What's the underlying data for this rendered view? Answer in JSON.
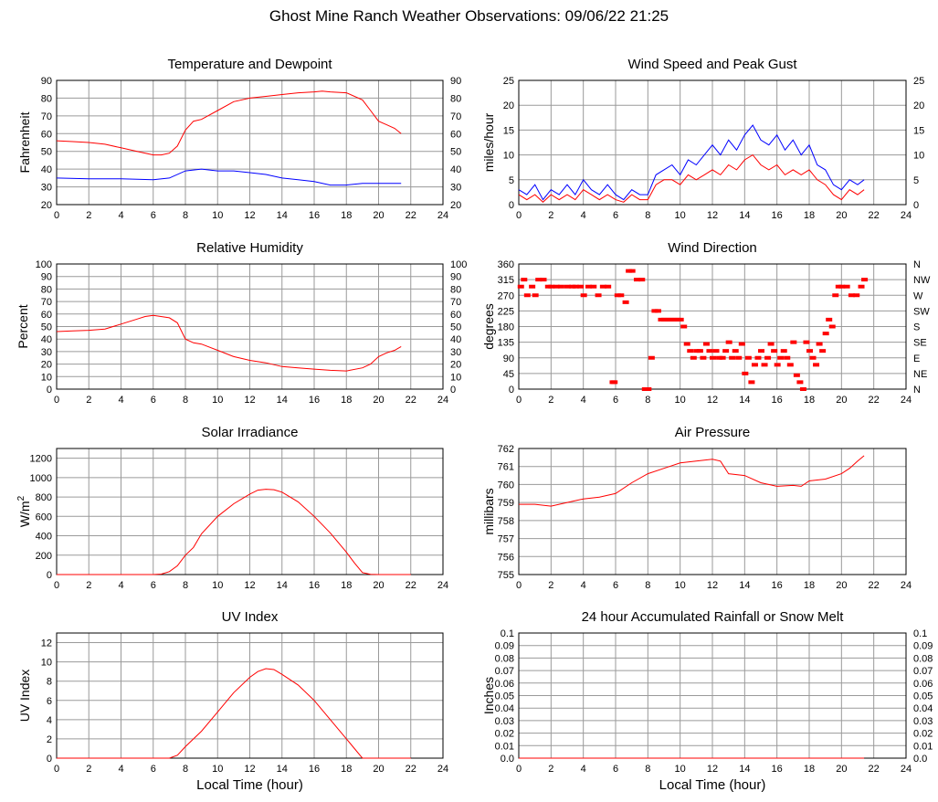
{
  "page_title": "Ghost Mine Ranch Weather Observations: 09/06/22 21:25",
  "x_axis_label": "Local Time (hour)",
  "colors": {
    "primary_series": "#ff0000",
    "secondary_series": "#0000ff",
    "grid": "#9a9a9a"
  },
  "chart_data": [
    {
      "id": "temperature",
      "type": "line",
      "title": "Temperature and Dewpoint",
      "ylabel": "Fahrenheit",
      "xlim": [
        0,
        24
      ],
      "ylim": [
        20,
        90
      ],
      "xticks": [
        0,
        2,
        4,
        6,
        8,
        10,
        12,
        14,
        16,
        18,
        20,
        22,
        24
      ],
      "yticks": [
        20,
        30,
        40,
        50,
        60,
        70,
        80,
        90
      ],
      "ytick_labels": [
        "20",
        "30",
        "40",
        "50",
        "60",
        "70",
        "80",
        "90"
      ],
      "right_ticks": [
        "20",
        "30",
        "40",
        "50",
        "60",
        "70",
        "80",
        "90"
      ],
      "series": [
        {
          "name": "Temperature",
          "color": "#ff0000",
          "x": [
            0,
            1,
            2,
            3,
            4,
            5,
            6,
            6.5,
            7,
            7.5,
            8,
            8.5,
            9,
            10,
            11,
            12,
            13,
            14,
            15,
            16,
            16.5,
            17,
            18,
            19,
            19.5,
            20,
            20.5,
            21,
            21.4
          ],
          "y": [
            56,
            55.5,
            55,
            54,
            52,
            50,
            48,
            48,
            49,
            53,
            62,
            67,
            68,
            73,
            78,
            80,
            81,
            82,
            83,
            83.5,
            84,
            83.5,
            83,
            79,
            73,
            67,
            65,
            63,
            60
          ]
        },
        {
          "name": "Dewpoint",
          "color": "#0000ff",
          "x": [
            0,
            2,
            4,
            6,
            7,
            8,
            9,
            10,
            11,
            12,
            13,
            14,
            15,
            16,
            17,
            18,
            19,
            20,
            21,
            21.4
          ],
          "y": [
            35,
            34.5,
            34.5,
            34,
            35,
            39,
            40,
            39,
            39,
            38,
            37,
            35,
            34,
            33,
            31,
            31,
            32,
            32,
            32,
            32
          ]
        }
      ]
    },
    {
      "id": "wind_speed",
      "type": "line",
      "title": "Wind Speed and Peak Gust",
      "ylabel": "miles/hour",
      "xlim": [
        0,
        24
      ],
      "ylim": [
        0,
        25
      ],
      "xticks": [
        0,
        2,
        4,
        6,
        8,
        10,
        12,
        14,
        16,
        18,
        20,
        22,
        24
      ],
      "yticks": [
        0,
        5,
        10,
        15,
        20,
        25
      ],
      "ytick_labels": [
        "0",
        "5",
        "10",
        "15",
        "20",
        "25"
      ],
      "right_ticks": [
        "0",
        "5",
        "10",
        "15",
        "20",
        "25"
      ],
      "series": [
        {
          "name": "Peak Gust",
          "color": "#0000ff",
          "x": [
            0,
            0.5,
            1,
            1.5,
            2,
            2.5,
            3,
            3.5,
            4,
            4.5,
            5,
            5.5,
            6,
            6.5,
            7,
            7.5,
            8,
            8.5,
            9,
            9.5,
            10,
            10.5,
            11,
            11.5,
            12,
            12.5,
            13,
            13.5,
            14,
            14.5,
            15,
            15.5,
            16,
            16.5,
            17,
            17.5,
            18,
            18.5,
            19,
            19.5,
            20,
            20.5,
            21,
            21.4
          ],
          "y": [
            3,
            2,
            4,
            1,
            3,
            2,
            4,
            2,
            5,
            3,
            2,
            4,
            2,
            1,
            3,
            2,
            2,
            6,
            7,
            8,
            6,
            9,
            8,
            10,
            12,
            10,
            13,
            11,
            14,
            16,
            13,
            12,
            14,
            11,
            13,
            10,
            12,
            8,
            7,
            4,
            3,
            5,
            4,
            5
          ]
        },
        {
          "name": "Wind Speed",
          "color": "#ff0000",
          "x": [
            0,
            0.5,
            1,
            1.5,
            2,
            2.5,
            3,
            3.5,
            4,
            4.5,
            5,
            5.5,
            6,
            6.5,
            7,
            7.5,
            8,
            8.5,
            9,
            9.5,
            10,
            10.5,
            11,
            11.5,
            12,
            12.5,
            13,
            13.5,
            14,
            14.5,
            15,
            15.5,
            16,
            16.5,
            17,
            17.5,
            18,
            18.5,
            19,
            19.5,
            20,
            20.5,
            21,
            21.4
          ],
          "y": [
            2,
            1,
            2,
            0.5,
            2,
            1,
            2,
            1,
            3,
            2,
            1,
            2,
            1,
            0.5,
            2,
            1,
            1,
            4,
            5,
            5,
            4,
            6,
            5,
            6,
            7,
            6,
            8,
            7,
            9,
            10,
            8,
            7,
            8,
            6,
            7,
            6,
            7,
            5,
            4,
            2,
            1,
            3,
            2,
            3
          ]
        }
      ]
    },
    {
      "id": "humidity",
      "type": "line",
      "title": "Relative Humidity",
      "ylabel": "Percent",
      "xlim": [
        0,
        24
      ],
      "ylim": [
        0,
        100
      ],
      "xticks": [
        0,
        2,
        4,
        6,
        8,
        10,
        12,
        14,
        16,
        18,
        20,
        22,
        24
      ],
      "yticks": [
        0,
        10,
        20,
        30,
        40,
        50,
        60,
        70,
        80,
        90,
        100
      ],
      "ytick_labels": [
        "0",
        "10",
        "20",
        "30",
        "40",
        "50",
        "60",
        "70",
        "80",
        "90",
        "100"
      ],
      "right_ticks": [
        "0",
        "10",
        "20",
        "30",
        "40",
        "50",
        "60",
        "70",
        "80",
        "90",
        "100"
      ],
      "series": [
        {
          "name": "Relative Humidity",
          "color": "#ff0000",
          "x": [
            0,
            1,
            2,
            3,
            4,
            5,
            5.5,
            6,
            7,
            7.5,
            8,
            8.5,
            9,
            10,
            11,
            12,
            13,
            14,
            15,
            16,
            17,
            18,
            19,
            19.5,
            20,
            20.5,
            21,
            21.4
          ],
          "y": [
            46,
            46.5,
            47,
            48,
            52,
            56,
            58,
            59,
            57,
            53,
            40,
            37,
            36,
            31,
            26,
            23,
            21,
            18,
            17,
            16,
            15,
            14.5,
            17,
            20,
            26,
            29,
            31,
            34
          ]
        }
      ]
    },
    {
      "id": "wind_direction",
      "type": "scatter",
      "title": "Wind Direction",
      "ylabel": "degrees",
      "xlim": [
        0,
        24
      ],
      "ylim": [
        0,
        360
      ],
      "xticks": [
        0,
        2,
        4,
        6,
        8,
        10,
        12,
        14,
        16,
        18,
        20,
        22,
        24
      ],
      "yticks": [
        0,
        45,
        90,
        135,
        180,
        225,
        270,
        315,
        360
      ],
      "ytick_labels": [
        "0",
        "45",
        "90",
        "135",
        "180",
        "225",
        "270",
        "315",
        "360"
      ],
      "right_ticks": [
        "N",
        "NE",
        "E",
        "SE",
        "S",
        "SW",
        "W",
        "NW",
        "N"
      ],
      "series": [
        {
          "name": "Wind Direction",
          "color": "#ff0000",
          "x": [
            0.1,
            0.3,
            0.5,
            0.8,
            1.0,
            1.2,
            1.5,
            1.8,
            2.0,
            2.3,
            2.6,
            3.0,
            3.3,
            3.5,
            3.8,
            4.0,
            4.3,
            4.6,
            4.9,
            5.2,
            5.5,
            5.8,
            5.9,
            6.1,
            6.3,
            6.6,
            6.8,
            7.0,
            7.3,
            7.6,
            7.8,
            8.0,
            8.2,
            8.4,
            8.6,
            8.8,
            9.0,
            9.2,
            9.4,
            9.6,
            9.8,
            10.0,
            10.2,
            10.4,
            10.6,
            10.8,
            11.0,
            11.2,
            11.4,
            11.6,
            11.8,
            12.0,
            12.2,
            12.4,
            12.6,
            12.8,
            13.0,
            13.2,
            13.4,
            13.6,
            13.8,
            14.0,
            14.2,
            14.4,
            14.6,
            14.8,
            15.0,
            15.2,
            15.4,
            15.6,
            15.8,
            16.0,
            16.2,
            16.4,
            16.6,
            16.8,
            17.0,
            17.2,
            17.4,
            17.6,
            17.8,
            18.0,
            18.2,
            18.4,
            18.6,
            18.8,
            19.0,
            19.2,
            19.4,
            19.6,
            19.8,
            20.0,
            20.3,
            20.6,
            20.9,
            21.2,
            21.4
          ],
          "y": [
            295,
            315,
            270,
            295,
            270,
            315,
            315,
            295,
            295,
            295,
            295,
            295,
            295,
            295,
            295,
            270,
            295,
            295,
            270,
            295,
            295,
            20,
            20,
            270,
            270,
            250,
            340,
            340,
            315,
            315,
            0,
            0,
            90,
            225,
            225,
            200,
            200,
            200,
            200,
            200,
            200,
            200,
            180,
            130,
            110,
            90,
            110,
            110,
            90,
            130,
            110,
            90,
            110,
            90,
            90,
            110,
            135,
            90,
            110,
            90,
            130,
            45,
            90,
            20,
            70,
            90,
            110,
            70,
            90,
            130,
            110,
            70,
            90,
            110,
            90,
            70,
            135,
            40,
            20,
            0,
            135,
            110,
            90,
            70,
            130,
            110,
            160,
            200,
            180,
            270,
            295,
            295,
            295,
            270,
            270,
            295,
            315
          ]
        }
      ]
    },
    {
      "id": "solar",
      "type": "line",
      "title": "Solar Irradiance",
      "ylabel": "W/m²",
      "xlim": [
        0,
        24
      ],
      "ylim": [
        0,
        1300
      ],
      "xticks": [
        0,
        2,
        4,
        6,
        8,
        10,
        12,
        14,
        16,
        18,
        20,
        22,
        24
      ],
      "yticks": [
        0,
        200,
        400,
        600,
        800,
        1000,
        1200
      ],
      "ytick_labels": [
        "0",
        "200",
        "400",
        "600",
        "800",
        "1000",
        "1200"
      ],
      "right_ticks": [],
      "series": [
        {
          "name": "Solar Irradiance",
          "color": "#ff0000",
          "x": [
            0,
            2,
            4,
            6,
            6.5,
            7,
            7.5,
            8,
            8.5,
            9,
            10,
            11,
            12,
            12.5,
            13,
            13.5,
            14,
            15,
            16,
            17,
            18,
            18.5,
            19,
            19.5,
            20,
            22
          ],
          "y": [
            0,
            0,
            0,
            0,
            5,
            30,
            90,
            200,
            280,
            420,
            600,
            730,
            830,
            870,
            880,
            875,
            850,
            750,
            600,
            430,
            230,
            120,
            20,
            3,
            0,
            0
          ]
        }
      ]
    },
    {
      "id": "pressure",
      "type": "line",
      "title": "Air Pressure",
      "ylabel": "millibars",
      "xlim": [
        0,
        24
      ],
      "ylim": [
        755,
        762
      ],
      "xticks": [
        0,
        2,
        4,
        6,
        8,
        10,
        12,
        14,
        16,
        18,
        20,
        22,
        24
      ],
      "yticks": [
        755,
        756,
        757,
        758,
        759,
        760,
        761,
        762
      ],
      "ytick_labels": [
        "755",
        "756",
        "757",
        "758",
        "759",
        "760",
        "761",
        "762"
      ],
      "right_ticks": [],
      "series": [
        {
          "name": "Air Pressure",
          "color": "#ff0000",
          "x": [
            0,
            1,
            2,
            3,
            4,
            5,
            6,
            7,
            8,
            9,
            10,
            11,
            12,
            12.5,
            13,
            14,
            15,
            16,
            17,
            17.5,
            18,
            19,
            20,
            20.5,
            21,
            21.4
          ],
          "y": [
            758.9,
            758.9,
            758.8,
            759.0,
            759.2,
            759.3,
            759.5,
            760.1,
            760.6,
            760.9,
            761.2,
            761.3,
            761.4,
            761.3,
            760.6,
            760.5,
            760.1,
            759.9,
            759.95,
            759.9,
            760.2,
            760.3,
            760.6,
            760.9,
            761.3,
            761.6
          ]
        }
      ]
    },
    {
      "id": "uv",
      "type": "line",
      "title": "UV Index",
      "ylabel": "UV Index",
      "xlim": [
        0,
        24
      ],
      "ylim": [
        0,
        13
      ],
      "xticks": [
        0,
        2,
        4,
        6,
        8,
        10,
        12,
        14,
        16,
        18,
        20,
        22,
        24
      ],
      "yticks": [
        0,
        2,
        4,
        6,
        8,
        10,
        12
      ],
      "ytick_labels": [
        "0",
        "2",
        "4",
        "6",
        "8",
        "10",
        "12"
      ],
      "right_ticks": [],
      "series": [
        {
          "name": "UV Index",
          "color": "#ff0000",
          "x": [
            0,
            2,
            4,
            6,
            7,
            7.5,
            8,
            9,
            10,
            11,
            12,
            12.5,
            13,
            13.5,
            14,
            15,
            16,
            17,
            18,
            18.5,
            18.9,
            19,
            20,
            22
          ],
          "y": [
            0,
            0,
            0,
            0,
            0,
            0.3,
            1.2,
            2.8,
            4.8,
            6.8,
            8.4,
            9.0,
            9.3,
            9.2,
            8.7,
            7.6,
            6.0,
            4.0,
            2.0,
            1.0,
            0.2,
            0,
            0,
            0
          ]
        }
      ]
    },
    {
      "id": "rainfall",
      "type": "line",
      "title": "24 hour Accumulated Rainfall or Snow Melt",
      "ylabel": "Inches",
      "xlim": [
        0,
        24
      ],
      "ylim": [
        0,
        0.1
      ],
      "xticks": [
        0,
        2,
        4,
        6,
        8,
        10,
        12,
        14,
        16,
        18,
        20,
        22,
        24
      ],
      "yticks": [
        0,
        0.01,
        0.02,
        0.03,
        0.04,
        0.05,
        0.06,
        0.07,
        0.08,
        0.09,
        0.1
      ],
      "ytick_labels": [
        "0.0",
        "0.01",
        "0.02",
        "0.03",
        "0.04",
        "0.05",
        "0.06",
        "0.07",
        "0.08",
        "0.09",
        "0.1"
      ],
      "right_ticks": [
        "0.0",
        "0.01",
        "0.02",
        "0.03",
        "0.04",
        "0.05",
        "0.06",
        "0.07",
        "0.08",
        "0.09",
        "0.1"
      ],
      "series": [
        {
          "name": "Rainfall",
          "color": "#ff0000",
          "x": [
            0,
            21.4
          ],
          "y": [
            0,
            0
          ]
        }
      ]
    }
  ]
}
